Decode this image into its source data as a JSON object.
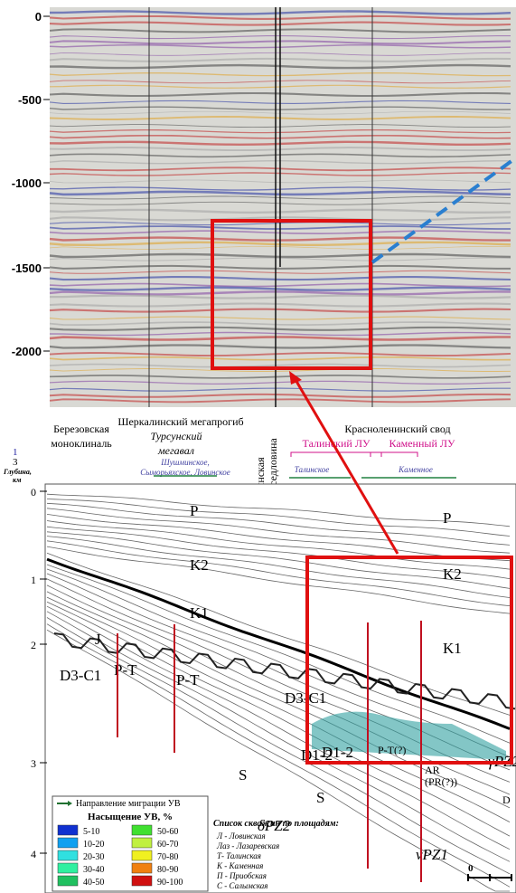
{
  "seismic": {
    "depth_ticks": [
      "0",
      "-500",
      "-1000",
      "-1500",
      "-2000"
    ]
  },
  "section": {
    "header": {
      "a": "1",
      "b": "3",
      "depth_label": "Глубина,",
      "depth_unit": "км"
    },
    "regions": {
      "berezovo": [
        "Березовская",
        "моноклиналь"
      ],
      "sherkal": "Шеркалинский мегапрогиб",
      "tursun": [
        "Турсунский",
        "мегавал"
      ],
      "tursun_fields": [
        "Шушминское,",
        "Сыморьяхское, Ловинское"
      ],
      "yakh": [
        "Яхлинская",
        "мегаседловина"
      ],
      "krasnolen": "Красноленинский свод",
      "talin": "Талинский ЛУ",
      "kamen": "Каменный ЛУ",
      "talin_field": "Талинское",
      "kamen_field": "Каменное"
    },
    "depth_ticks": [
      "0",
      "1",
      "2",
      "3",
      "4"
    ],
    "formations": [
      "P",
      "P",
      "K2",
      "K2",
      "K1",
      "K1",
      "J",
      "D3-C1",
      "P-T",
      "P-T",
      "D3-C1",
      "D1-2",
      "S",
      "D1-2",
      "S",
      "P-T(?)",
      "AR",
      "(PR(?))",
      "δPZ2",
      "νPZ1",
      "γPZ2",
      "D"
    ],
    "legend": {
      "arrow": "Направление миграции УВ",
      "title": "Насыщение УВ, %",
      "items": [
        {
          "label": "5-10",
          "color": "#1030d0"
        },
        {
          "label": "50-60",
          "color": "#40e030"
        },
        {
          "label": "10-20",
          "color": "#10a0f0"
        },
        {
          "label": "60-70",
          "color": "#c0f040"
        },
        {
          "label": "20-30",
          "color": "#30e0e0"
        },
        {
          "label": "70-80",
          "color": "#f0f020"
        },
        {
          "label": "30-40",
          "color": "#30f0a0"
        },
        {
          "label": "80-90",
          "color": "#f08010"
        },
        {
          "label": "40-50",
          "color": "#20c060"
        },
        {
          "label": "90-100",
          "color": "#d01010"
        }
      ]
    },
    "wells": {
      "title": "Список скважин по площадям:",
      "items": [
        "Л - Ловинская",
        "Лаз - Лазаревская",
        "Т- Талинская",
        "К - Каменная",
        "П - Приобская",
        "С - Салымская"
      ]
    },
    "scale": "0"
  }
}
